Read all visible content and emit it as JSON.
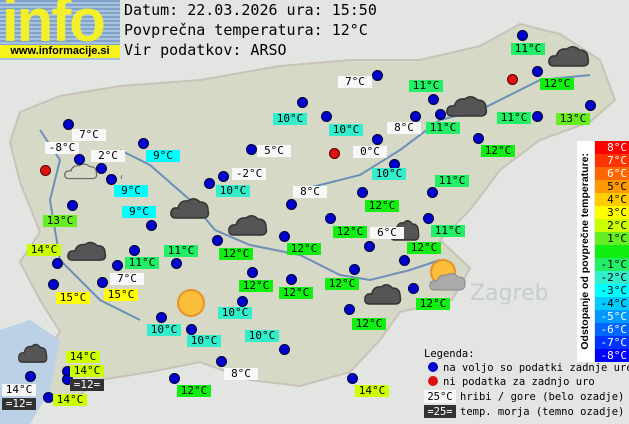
{
  "logo": {
    "word": "info",
    "url": "www.informacije.si"
  },
  "header": {
    "date_line": "Datum: 22.03.2026 ura: 15:50",
    "avg_line": "Povprečna temperatura: 12°C",
    "source_line": "Vir podatkov: ARSO"
  },
  "colors": {
    "station_available": "#0000cc",
    "station_missing": "#dd1111",
    "mountain_bg": "#f8f8f8",
    "sea_bg": "#333333"
  },
  "labels": [
    {
      "t": "7°C",
      "k": "white"
    },
    {
      "t": "-8°C",
      "k": "white"
    },
    {
      "t": "2°C",
      "k": "white"
    },
    {
      "t": "9°C",
      "k": "-3"
    },
    {
      "t": "9°C",
      "k": "-3"
    },
    {
      "t": "9°C",
      "k": "-3"
    },
    {
      "t": "13°C",
      "k": "1"
    },
    {
      "t": "10°C",
      "k": "-2"
    },
    {
      "t": "5°C",
      "k": "white"
    },
    {
      "t": "-2°C",
      "k": "white"
    },
    {
      "t": "10°C",
      "k": "-2"
    },
    {
      "t": "8°C",
      "k": "white"
    },
    {
      "t": "11°C",
      "k": "-1"
    },
    {
      "t": "12°C",
      "k": "0"
    },
    {
      "t": "13°C",
      "k": "1"
    },
    {
      "t": "7°C",
      "k": "white"
    },
    {
      "t": "11°C",
      "k": "-1"
    },
    {
      "t": "11°C",
      "k": "-1"
    },
    {
      "t": "11°C",
      "k": "-1"
    },
    {
      "t": "10°C",
      "k": "-2"
    },
    {
      "t": "8°C",
      "k": "white"
    },
    {
      "t": "0°C",
      "k": "white"
    },
    {
      "t": "10°C",
      "k": "-2"
    },
    {
      "t": "12°C",
      "k": "0"
    },
    {
      "t": "11°C",
      "k": "-1"
    },
    {
      "t": "12°C",
      "k": "0"
    },
    {
      "t": "12°C",
      "k": "0"
    },
    {
      "t": "6°C",
      "k": "white"
    },
    {
      "t": "11°C",
      "k": "-1"
    },
    {
      "t": "14°C",
      "k": "2"
    },
    {
      "t": "11°C",
      "k": "-1"
    },
    {
      "t": "11°C",
      "k": "-1"
    },
    {
      "t": "12°C",
      "k": "0"
    },
    {
      "t": "12°C",
      "k": "0"
    },
    {
      "t": "12°C",
      "k": "0"
    },
    {
      "t": "7°C",
      "k": "white"
    },
    {
      "t": "15°C",
      "k": "3"
    },
    {
      "t": "15°C",
      "k": "3"
    },
    {
      "t": "12°C",
      "k": "0"
    },
    {
      "t": "12°C",
      "k": "0"
    },
    {
      "t": "12°C",
      "k": "0"
    },
    {
      "t": "12°C",
      "k": "0"
    },
    {
      "t": "12°C",
      "k": "0"
    },
    {
      "t": "10°C",
      "k": "-2"
    },
    {
      "t": "10°C",
      "k": "-2"
    },
    {
      "t": "10°C",
      "k": "-2"
    },
    {
      "t": "10°C",
      "k": "-2"
    },
    {
      "t": "14°C",
      "k": "2"
    },
    {
      "t": "14°C",
      "k": "2"
    },
    {
      "t": "=12=",
      "k": "sea"
    },
    {
      "t": "14°C",
      "k": "white"
    },
    {
      "t": "=12=",
      "k": "sea"
    },
    {
      "t": "14°C",
      "k": "2"
    },
    {
      "t": "8°C",
      "k": "white"
    },
    {
      "t": "12°C",
      "k": "0"
    },
    {
      "t": "14°C",
      "k": "2"
    }
  ],
  "label_colors": {
    "3": "#ffff00",
    "2": "#ccff00",
    "1": "#66ee22",
    "0": "#11ee11",
    "-1": "#22ee66",
    "-2": "#33eecc",
    "-3": "#00ffff",
    "white": "#f8f8f8",
    "sea": "#333333"
  },
  "scale": {
    "title": "Odstopanje od povprečne temperature:",
    "steps": [
      {
        "t": "8°C",
        "c": "#ff0000",
        "fg": "#ffffff"
      },
      {
        "t": "7°C",
        "c": "#ff3300",
        "fg": "#ffffff"
      },
      {
        "t": "6°C",
        "c": "#ff6600",
        "fg": "#ffffff"
      },
      {
        "t": "5°C",
        "c": "#ff9900",
        "fg": "#000000"
      },
      {
        "t": "4°C",
        "c": "#ffcc00",
        "fg": "#000000"
      },
      {
        "t": "3°C",
        "c": "#ffff00",
        "fg": "#000000"
      },
      {
        "t": "2°C",
        "c": "#ccff00",
        "fg": "#000000"
      },
      {
        "t": "1°C",
        "c": "#66ee22",
        "fg": "#000000"
      },
      {
        "t": "",
        "c": "#11ee11",
        "fg": "#000000"
      },
      {
        "t": "-1°C",
        "c": "#22ee66",
        "fg": "#000000"
      },
      {
        "t": "-2°C",
        "c": "#33eecc",
        "fg": "#000000"
      },
      {
        "t": "-3°C",
        "c": "#00ffff",
        "fg": "#000000"
      },
      {
        "t": "-4°C",
        "c": "#00ccff",
        "fg": "#000000"
      },
      {
        "t": "-5°C",
        "c": "#0099ff",
        "fg": "#ffffff"
      },
      {
        "t": "-6°C",
        "c": "#0066ff",
        "fg": "#ffffff"
      },
      {
        "t": "-7°C",
        "c": "#0033ff",
        "fg": "#ffffff"
      },
      {
        "t": "-8°C",
        "c": "#0000ff",
        "fg": "#ffffff"
      }
    ]
  },
  "legend": {
    "title": "Legenda:",
    "available": "na voljo so podatki zadnje ure",
    "missing": "ni podatka za zadnjo uro",
    "mountain_sample": "25°C",
    "mountain_text": "hribi / gore (belo ozadje)",
    "sea_sample": "=25=",
    "sea_text": "temp. morja (temno ozadje)"
  },
  "weather_icons": [
    "rain-cloud-icon",
    "cloud-icon",
    "cloud-icon",
    "cloud-icon",
    "cloud-icon",
    "cloud-icon",
    "cloud-icon",
    "cloud-icon",
    "cloud-icon",
    "sun-icon",
    "sun-cloud-icon"
  ],
  "map_text": {
    "zagreb": "Zagreb"
  }
}
